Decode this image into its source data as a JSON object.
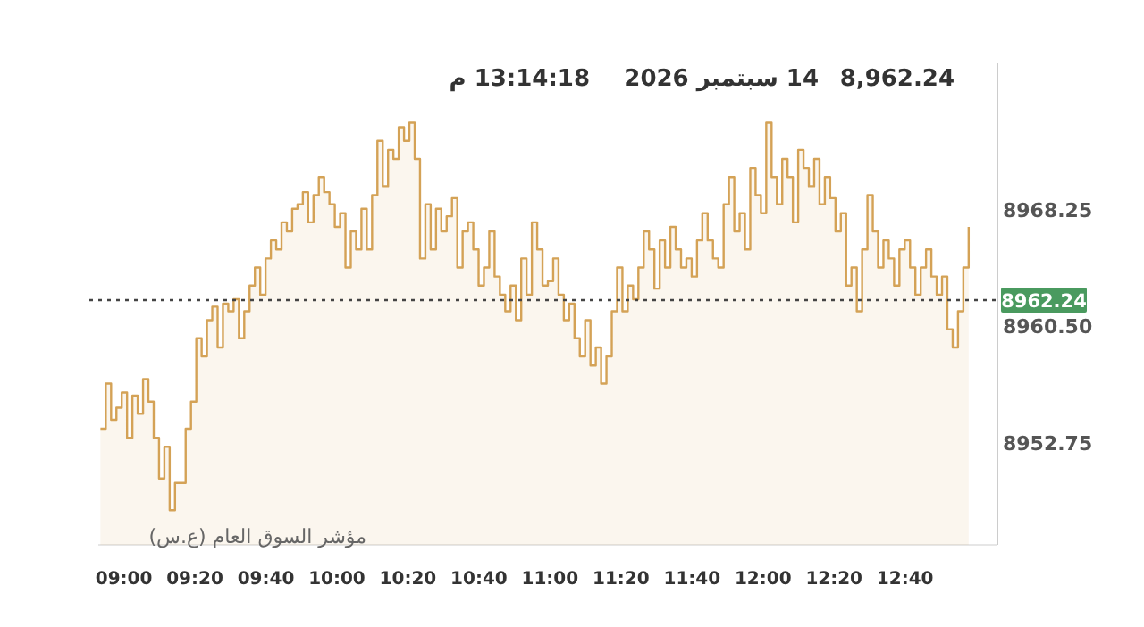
{
  "chart_data": {
    "type": "area",
    "title": "8,962.24",
    "annotations": [
      "14 سبتمبر 2026",
      "13:14:18 م",
      "مؤشر السوق العام (ع.س)"
    ],
    "x": [
      8.89,
      8.915,
      8.94,
      8.965,
      8.99,
      9.015,
      9.04,
      9.065,
      9.09,
      9.115,
      9.14,
      9.165,
      9.19,
      9.215,
      9.24,
      9.265,
      9.29,
      9.315,
      9.34,
      9.365,
      9.39,
      9.415,
      9.44,
      9.465,
      9.49,
      9.515,
      9.54,
      9.565,
      9.59,
      9.615,
      9.64,
      9.665,
      9.69,
      9.715,
      9.74,
      9.765,
      9.79,
      9.815,
      9.84,
      9.865,
      9.89,
      9.915,
      9.94,
      9.965,
      9.99,
      10.015,
      10.04,
      10.065,
      10.09,
      10.115,
      10.14,
      10.165,
      10.19,
      10.215,
      10.24,
      10.265,
      10.29,
      10.315,
      10.34,
      10.365,
      10.39,
      10.415,
      10.44,
      10.465,
      10.49,
      10.515,
      10.54,
      10.565,
      10.59,
      10.615,
      10.64,
      10.665,
      10.69,
      10.715,
      10.74,
      10.765,
      10.79,
      10.815,
      10.84,
      10.865,
      10.89,
      10.915,
      10.94,
      10.965,
      10.99,
      11.015,
      11.04,
      11.065,
      11.09,
      11.115,
      11.14,
      11.165,
      11.19,
      11.215,
      11.24,
      11.265,
      11.29,
      11.315,
      11.34,
      11.365,
      11.39,
      11.415,
      11.44,
      11.465,
      11.49,
      11.515,
      11.54,
      11.565,
      11.59,
      11.615,
      11.64,
      11.665,
      11.69,
      11.715,
      11.74,
      11.765,
      11.79,
      11.815,
      11.84,
      11.865,
      11.89,
      11.915,
      11.94,
      11.965,
      11.99,
      12.015,
      12.04,
      12.065,
      12.09,
      12.115,
      12.14,
      12.165,
      12.19,
      12.215,
      12.24,
      12.265,
      12.29,
      12.315,
      12.34,
      12.365,
      12.39,
      12.415,
      12.44,
      12.465,
      12.49,
      12.515,
      12.54,
      12.565,
      12.59,
      12.615,
      12.64,
      12.665,
      12.69,
      12.715,
      12.74,
      12.765,
      12.79,
      12.815,
      12.84,
      12.865,
      12.89,
      12.915,
      12.94,
      12.965
    ],
    "series": [
      {
        "color": "#d4a256",
        "values": [
          8953.7,
          8956.7,
          8954.3,
          8955.1,
          8956.1,
          8953.1,
          8955.9,
          8954.7,
          8957.0,
          8955.5,
          8953.1,
          8950.4,
          8952.5,
          8948.3,
          8950.1,
          8950.1,
          8953.7,
          8955.5,
          8959.7,
          8958.5,
          8960.9,
          8961.8,
          8959.1,
          8962.0,
          8961.5,
          8962.3,
          8959.7,
          8961.5,
          8963.2,
          8964.4,
          8962.6,
          8965.0,
          8966.2,
          8965.6,
          8967.4,
          8966.8,
          8968.3,
          8968.6,
          8969.4,
          8967.4,
          8969.2,
          8970.4,
          8969.4,
          8968.6,
          8967.1,
          8968.0,
          8964.4,
          8966.8,
          8965.6,
          8968.3,
          8965.6,
          8969.2,
          8972.8,
          8969.8,
          8972.2,
          8971.6,
          8973.7,
          8972.8,
          8974.0,
          8971.6,
          8965.0,
          8968.6,
          8965.6,
          8968.3,
          8966.8,
          8967.8,
          8969.0,
          8964.4,
          8966.8,
          8967.4,
          8965.6,
          8963.2,
          8964.4,
          8966.8,
          8963.8,
          8962.6,
          8961.5,
          8963.2,
          8960.9,
          8965.0,
          8962.6,
          8967.4,
          8965.6,
          8963.2,
          8963.5,
          8965.0,
          8962.6,
          8960.9,
          8962.0,
          8959.7,
          8958.5,
          8960.9,
          8957.9,
          8959.1,
          8956.7,
          8958.5,
          8961.5,
          8964.4,
          8961.5,
          8963.2,
          8962.3,
          8964.4,
          8966.8,
          8965.6,
          8963.0,
          8966.2,
          8964.4,
          8967.1,
          8965.6,
          8964.4,
          8965.0,
          8963.8,
          8966.2,
          8968.0,
          8966.2,
          8965.0,
          8964.4,
          8968.6,
          8970.4,
          8966.8,
          8968.0,
          8965.6,
          8971.0,
          8969.2,
          8968.0,
          8974.0,
          8970.4,
          8968.6,
          8971.6,
          8970.4,
          8967.4,
          8972.2,
          8971.0,
          8969.8,
          8971.6,
          8968.6,
          8970.4,
          8969.0,
          8966.8,
          8968.0,
          8963.2,
          8964.4,
          8961.5,
          8965.6,
          8969.2,
          8966.8,
          8964.4,
          8966.2,
          8965.0,
          8963.2,
          8965.6,
          8966.2,
          8964.4,
          8962.6,
          8964.4,
          8965.6,
          8963.8,
          8962.6,
          8963.8,
          8960.3,
          8959.1,
          8961.5,
          8964.4,
          8967.1
        ]
      }
    ],
    "xlim": [
      8.88,
      13.1
    ],
    "ylim": [
      8946,
      8978
    ],
    "xticks": [
      {
        "value": 9,
        "label": "09:00"
      },
      {
        "value": 9.3333,
        "label": "09:20"
      },
      {
        "value": 9.6667,
        "label": "09:40"
      },
      {
        "value": 10,
        "label": "10:00"
      },
      {
        "value": 10.3333,
        "label": "10:20"
      },
      {
        "value": 10.6667,
        "label": "10:40"
      },
      {
        "value": 11,
        "label": "11:00"
      },
      {
        "value": 11.3333,
        "label": "11:20"
      },
      {
        "value": 11.6667,
        "label": "11:40"
      },
      {
        "value": 12,
        "label": "12:00"
      },
      {
        "value": 12.3333,
        "label": "12:20"
      },
      {
        "value": 12.6667,
        "label": "12:40"
      }
    ],
    "yticks": [
      8968.25,
      {
        "value": 8960.5,
        "label": "8960.50"
      },
      8952.75
    ],
    "ref_lines": [
      {
        "axis": "y",
        "value": 8962.24,
        "label": "8962.24",
        "color": "#444444",
        "line_style": "dotted"
      }
    ],
    "grid": false
  }
}
